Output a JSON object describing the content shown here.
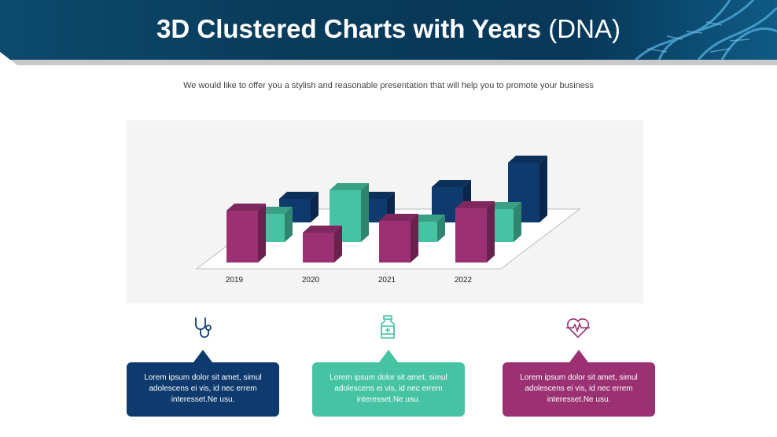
{
  "header": {
    "title_bold": "3D Clustered Charts with Years",
    "title_light": "(DNA)"
  },
  "subtitle": "We would like to offer you a stylish and reasonable presentation that will help you to promote your business",
  "colors": {
    "navy": "#0e3a6e",
    "teal": "#45c3a3",
    "magenta": "#9b3172"
  },
  "chart_data": {
    "type": "bar",
    "subtype": "3d-clustered",
    "categories": [
      "2019",
      "2020",
      "2021",
      "2022"
    ],
    "series": [
      {
        "color": "#9b3172",
        "values": [
          66,
          38,
          53,
          69
        ]
      },
      {
        "color": "#45c3a3",
        "values": [
          36,
          66,
          26,
          42
        ]
      },
      {
        "color": "#0e3a6e",
        "values": [
          30,
          30,
          45,
          76
        ]
      }
    ],
    "grid": false,
    "legend": "none"
  },
  "cards": [
    {
      "icon": "stethoscope-icon",
      "color": "#0e3a6e",
      "text": "Lorem ipsum dolor sit amet, simul adolescens ei vis, id nec errem interesset.Ne usu."
    },
    {
      "icon": "medicine-bottle-icon",
      "color": "#45c3a3",
      "text": "Lorem ipsum dolor sit amet, simul adolescens ei vis, id nec errem interesset.Ne usu."
    },
    {
      "icon": "heartbeat-icon",
      "color": "#9b3172",
      "text": "Lorem ipsum dolor sit amet, simul adolescens ei vis, id nec errem interesset.Ne usu."
    }
  ]
}
